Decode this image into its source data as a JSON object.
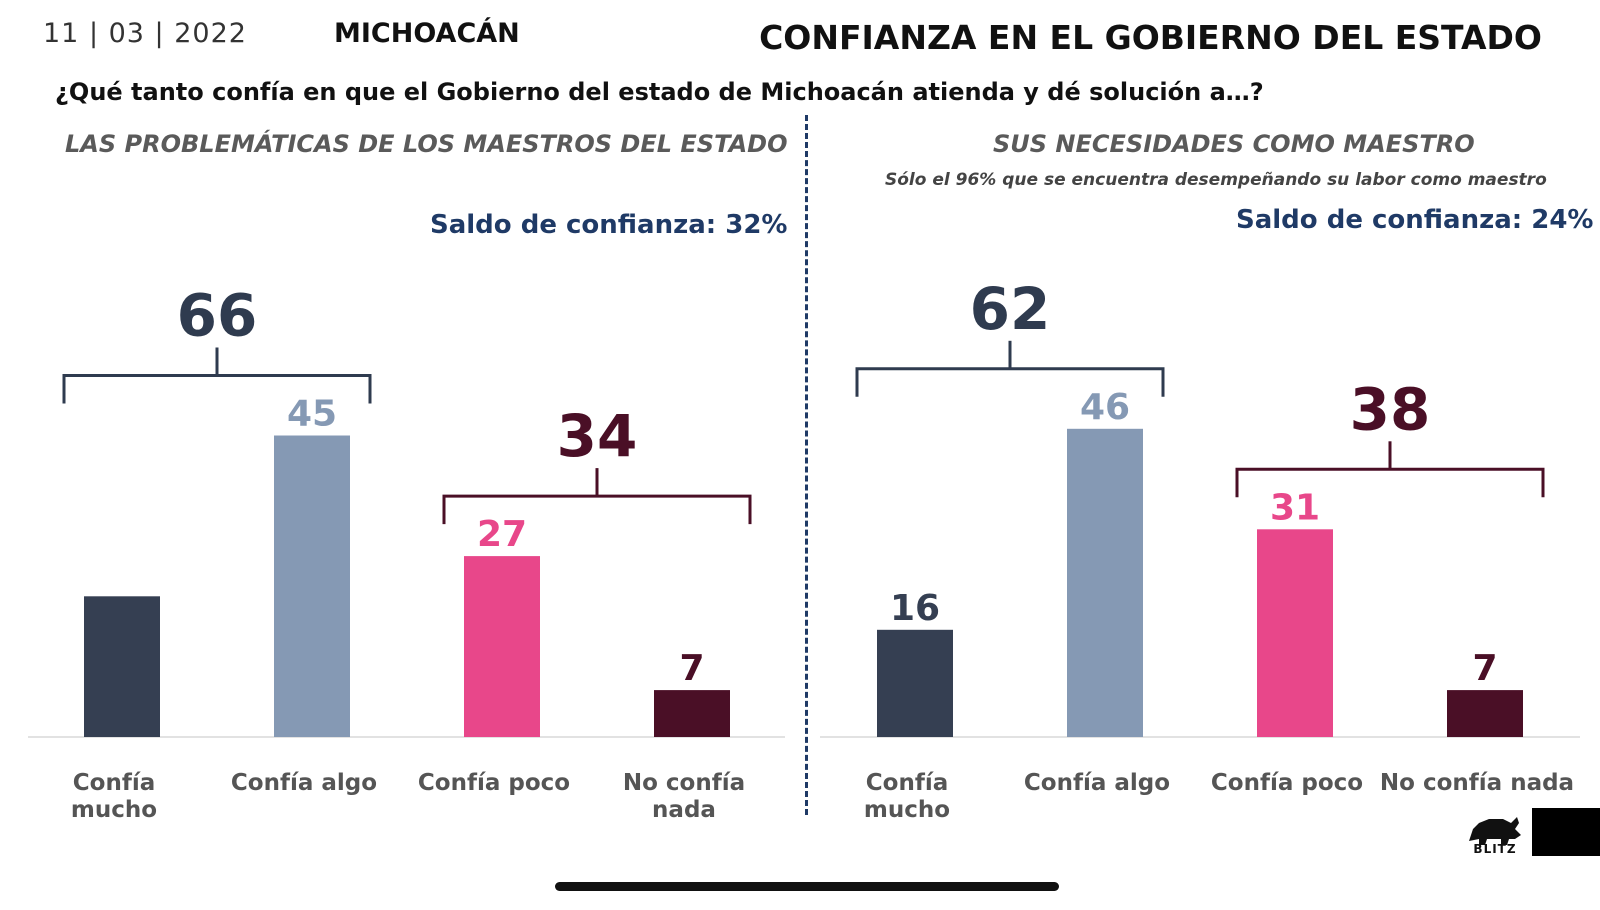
{
  "header": {
    "date": "11 | 03 | 2022",
    "state": "MICHOACÁN",
    "title": "CONFIANZA EN EL GOBIERNO DEL ESTADO",
    "question": "¿Qué tanto confía en que el Gobierno del estado de Michoacán atienda y dé solución a…?"
  },
  "left_panel": {
    "subtitle": "LAS PROBLEMÁTICAS DE LOS MAESTROS DEL ESTADO",
    "saldo": "Saldo de confianza: 32%"
  },
  "right_panel": {
    "subtitle": "SUS NECESIDADES COMO MAESTRO",
    "note": "Sólo el 96% que se encuentra desempeñando su labor como maestro",
    "saldo": "Saldo de confianza: 24%"
  },
  "logo": {
    "text": "BLITZ",
    "icon": "rhino-icon"
  },
  "colors": {
    "confia_mucho": "#353f52",
    "confia_algo": "#8599b4",
    "confia_poco": "#e8478a",
    "no_confia_nada": "#4a0f26",
    "trust_bracket": "#2f3b4f",
    "distrust_bracket": "#4a0f26",
    "saldo": "#1f3a66"
  },
  "chart_data": [
    {
      "type": "bar",
      "categories": [
        "Confía\nmucho",
        "Confía algo",
        "Confía poco",
        "No confía\nnada"
      ],
      "values": [
        21,
        45,
        27,
        7
      ],
      "data_labels": [
        "",
        "45",
        "27",
        "7"
      ],
      "groups": [
        {
          "label": "66",
          "from": 0,
          "to": 1
        },
        {
          "label": "34",
          "from": 2,
          "to": 3
        }
      ]
    },
    {
      "type": "bar",
      "categories": [
        "Confía\nmucho",
        "Confía algo",
        "Confía poco",
        "No confía nada"
      ],
      "values": [
        16,
        46,
        31,
        7
      ],
      "data_labels": [
        "16",
        "46",
        "31",
        "7"
      ],
      "groups": [
        {
          "label": "62",
          "from": 0,
          "to": 1
        },
        {
          "label": "38",
          "from": 2,
          "to": 3
        }
      ]
    }
  ]
}
